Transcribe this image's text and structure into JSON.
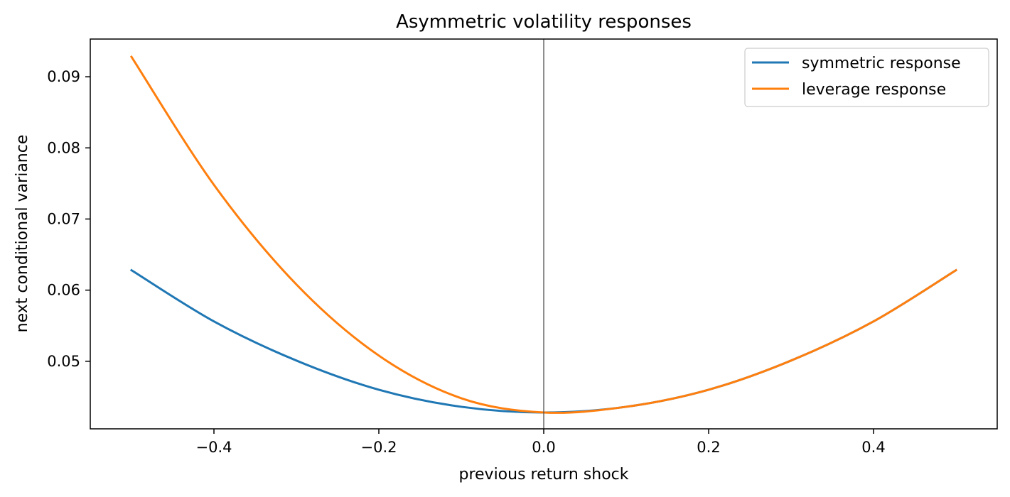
{
  "chart_data": {
    "type": "line",
    "title": "Asymmetric volatility responses",
    "xlabel": "previous return shock",
    "ylabel": "next conditional variance",
    "xlim": [
      -0.55,
      0.55
    ],
    "ylim": [
      0.0405,
      0.0953
    ],
    "xticks": [
      -0.4,
      -0.2,
      0.0,
      0.2,
      0.4
    ],
    "xtick_labels": [
      "−0.4",
      "−0.2",
      "0.0",
      "0.2",
      "0.4"
    ],
    "yticks": [
      0.05,
      0.06,
      0.07,
      0.08,
      0.09
    ],
    "ytick_labels": [
      "0.05",
      "0.06",
      "0.07",
      "0.08",
      "0.09"
    ],
    "vline_x": 0.0,
    "grid": false,
    "legend_position": "top-right",
    "series": [
      {
        "name": "symmetric response",
        "color": "#1f77b4",
        "x": [
          -0.5,
          -0.4,
          -0.3,
          -0.2,
          -0.1,
          0.0,
          0.1,
          0.2,
          0.3,
          0.4,
          0.5
        ],
        "y": [
          0.0628,
          0.0556,
          0.0501,
          0.046,
          0.0436,
          0.0428,
          0.0436,
          0.046,
          0.0501,
          0.0556,
          0.0628
        ]
      },
      {
        "name": "leverage response",
        "color": "#ff7f0e",
        "x": [
          -0.5,
          -0.4,
          -0.3,
          -0.2,
          -0.1,
          0.0,
          0.1,
          0.2,
          0.3,
          0.4,
          0.5
        ],
        "y": [
          0.0928,
          0.0748,
          0.0608,
          0.0508,
          0.0448,
          0.0428,
          0.0436,
          0.046,
          0.0501,
          0.0556,
          0.0628
        ]
      }
    ]
  }
}
